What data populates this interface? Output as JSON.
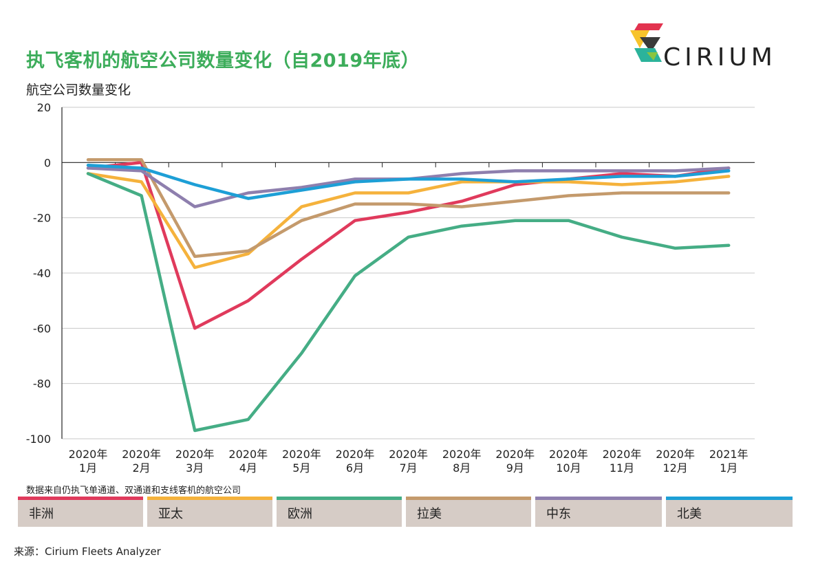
{
  "header": {
    "title": "执飞客机的航空公司数量变化（自2019年底）",
    "subtitle": "航空公司数量变化"
  },
  "logo": {
    "text": "CIRIUM"
  },
  "note": "数据来自仍执飞单通道、双通道和支线客机的航空公司",
  "source": "来源：Cirium Fleets Analyzer",
  "chart_data": {
    "type": "line",
    "title": "执飞客机的航空公司数量变化（自2019年底）",
    "ylabel": "航空公司数量变化",
    "ylim": [
      -100,
      20
    ],
    "yticks": [
      20,
      0,
      -20,
      -40,
      -60,
      -80,
      -100
    ],
    "grid": true,
    "legend_position": "bottom",
    "categories": [
      [
        "2020年",
        "1月"
      ],
      [
        "2020年",
        "2月"
      ],
      [
        "2020年",
        "3月"
      ],
      [
        "2020年",
        "4月"
      ],
      [
        "2020年",
        "5月"
      ],
      [
        "2020年",
        "6月"
      ],
      [
        "2020年",
        "7月"
      ],
      [
        "2020年",
        "8月"
      ],
      [
        "2020年",
        "9月"
      ],
      [
        "2020年",
        "10月"
      ],
      [
        "2020年",
        "11月"
      ],
      [
        "2020年",
        "12月"
      ],
      [
        "2021年",
        "1月"
      ]
    ],
    "series": [
      {
        "name": "非洲",
        "color": "#e03a5c",
        "values": [
          -2,
          0,
          -60,
          -50,
          -35,
          -21,
          -18,
          -14,
          -8,
          -6,
          -4,
          -5,
          -2
        ]
      },
      {
        "name": "亚太",
        "color": "#f5b23c",
        "values": [
          -4,
          -7,
          -38,
          -33,
          -16,
          -11,
          -11,
          -7,
          -7,
          -7,
          -8,
          -7,
          -5
        ]
      },
      {
        "name": "欧洲",
        "color": "#45ad85",
        "values": [
          -4,
          -12,
          -97,
          -93,
          -69,
          -41,
          -27,
          -23,
          -21,
          -21,
          -27,
          -31,
          -30
        ]
      },
      {
        "name": "拉美",
        "color": "#c49a6c",
        "values": [
          1,
          1,
          -34,
          -32,
          -21,
          -15,
          -15,
          -16,
          -14,
          -12,
          -11,
          -11,
          -11
        ]
      },
      {
        "name": "中东",
        "color": "#8e7fae",
        "values": [
          -2,
          -3,
          -16,
          -11,
          -9,
          -6,
          -6,
          -4,
          -3,
          -3,
          -3,
          -3,
          -2
        ]
      },
      {
        "name": "北美",
        "color": "#1d9fd6",
        "values": [
          -1,
          -2,
          -8,
          -13,
          -10,
          -7,
          -6,
          -6,
          -7,
          -6,
          -5,
          -5,
          -3
        ]
      }
    ]
  }
}
